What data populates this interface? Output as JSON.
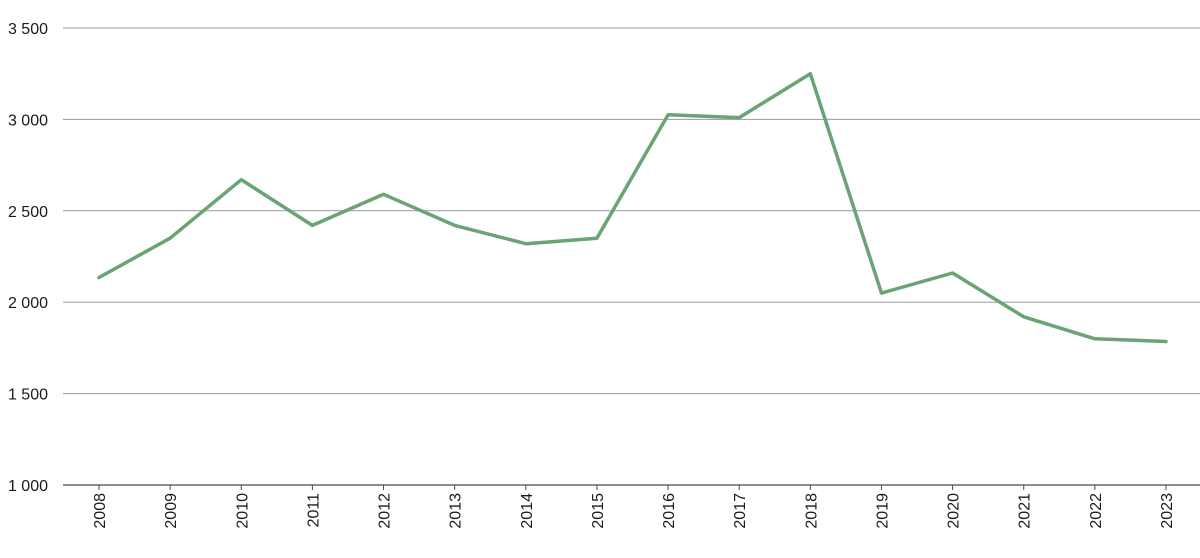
{
  "chart_data": {
    "type": "line",
    "title": "",
    "xlabel": "",
    "ylabel": "",
    "x": [
      "2008",
      "2009",
      "2010",
      "2011",
      "2012",
      "2013",
      "2014",
      "2015",
      "2016",
      "2017",
      "2018",
      "2019",
      "2020",
      "2021",
      "2022",
      "2023"
    ],
    "series": [
      {
        "values": [
          2135,
          2350,
          2670,
          2420,
          2590,
          2420,
          2320,
          2350,
          3025,
          3010,
          3250,
          2050,
          2160,
          1920,
          1800,
          1785
        ]
      }
    ],
    "ylim": [
      1000,
      3500
    ],
    "yticks": [
      1000,
      1500,
      2000,
      2500,
      3000,
      3500
    ],
    "ytick_labels": [
      "1 000",
      "1 500",
      "2 000",
      "2 500",
      "3 000",
      "3 500"
    ],
    "grid": true,
    "legend": "none",
    "colors": {
      "line": "#6aa374",
      "grid": "#9a9a9a",
      "axis": "#4a4a4a"
    }
  }
}
